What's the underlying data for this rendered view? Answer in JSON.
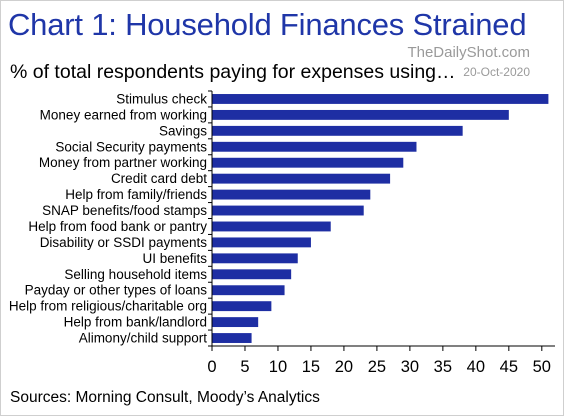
{
  "header": {
    "title": "Chart 1: Household Finances Strained",
    "subtitle": "% of total respondents paying for expenses using…",
    "brand": "TheDailyShot.com",
    "date": "20-Oct-2020"
  },
  "footer": {
    "source": "Sources: Morning Consult, Moody’s Analytics"
  },
  "colors": {
    "bar": "#1e2ea3",
    "title": "#1f36a8"
  },
  "chart_data": {
    "type": "bar",
    "orientation": "horizontal",
    "title": "Chart 1: Household Finances Strained",
    "subtitle": "% of total respondents paying for expenses using…",
    "xlabel": "",
    "ylabel": "",
    "xlim": [
      0,
      52
    ],
    "xticks": [
      0,
      5,
      10,
      15,
      20,
      25,
      30,
      35,
      40,
      45,
      50
    ],
    "grid": false,
    "legend": "none",
    "categories": [
      "Stimulus check",
      "Money earned from working",
      "Savings",
      "Social Security payments",
      "Money from partner working",
      "Credit card debt",
      "Help from family/friends",
      "SNAP benefits/food stamps",
      "Help from food bank or pantry",
      "Disability or SSDI payments",
      "UI benefits",
      "Selling household items",
      "Payday or other types of loans",
      "Help from religious/charitable org",
      "Help from bank/landlord",
      "Alimony/child support"
    ],
    "values": [
      51,
      45,
      38,
      31,
      29,
      27,
      24,
      23,
      18,
      15,
      13,
      12,
      11,
      9,
      7,
      6
    ]
  }
}
